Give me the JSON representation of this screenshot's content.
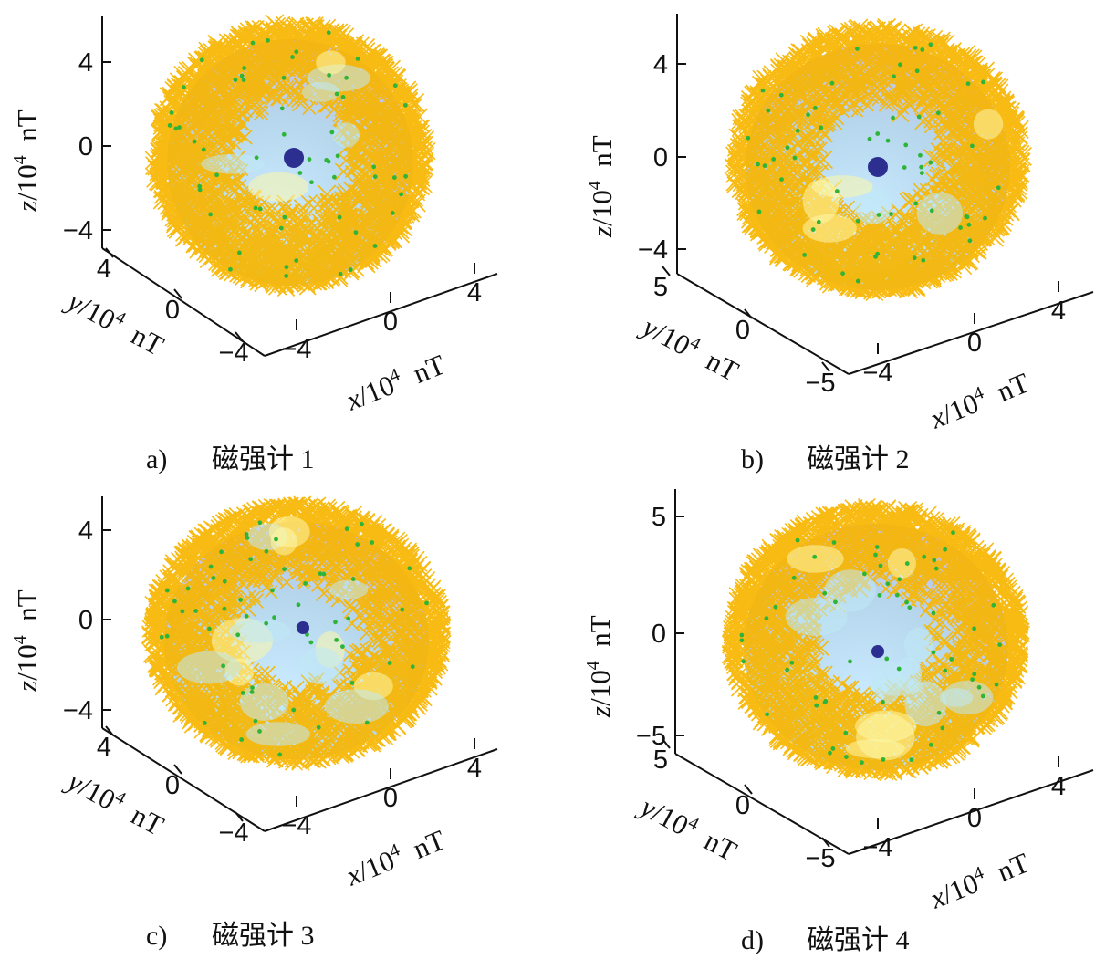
{
  "chart_data": [
    {
      "type": "scatter",
      "panel_letter": "a)",
      "caption": "磁强计 1",
      "xlabel": "x/10^4 nT",
      "ylabel": "y/10^4 nT",
      "zlabel": "z/10^4 nT",
      "z_ticks": [
        "4",
        "0",
        "-4"
      ],
      "y_ticks": [
        "4",
        "0",
        "-4"
      ],
      "x_ticks": [
        "-4",
        "0",
        "4"
      ],
      "series": [
        {
          "marker": "x",
          "color": "#f7b500",
          "values": "measured field points (dense, near-spherical shell radius ≈ 5)"
        },
        {
          "marker": "surface",
          "color": "#a9d8f2",
          "values": "fitted ellipsoid"
        },
        {
          "marker": "dot",
          "color": "#2c2f8f",
          "values": "centre point"
        }
      ]
    },
    {
      "type": "scatter",
      "panel_letter": "b)",
      "caption": "磁强计 2",
      "xlabel": "x/10^4 nT",
      "ylabel": "y/10^4 nT",
      "zlabel": "z/10^4 nT",
      "z_ticks": [
        "4",
        "0",
        "-4"
      ],
      "y_ticks": [
        "5",
        "0",
        "-5"
      ],
      "x_ticks": [
        "-4",
        "0",
        "4"
      ],
      "series": [
        {
          "marker": "x",
          "color": "#f7b500",
          "values": "measured field points"
        },
        {
          "marker": "surface",
          "color": "#a9d8f2",
          "values": "fitted ellipsoid"
        },
        {
          "marker": "dot",
          "color": "#2c2f8f",
          "values": "centre point"
        }
      ]
    },
    {
      "type": "scatter",
      "panel_letter": "c)",
      "caption": "磁强计 3",
      "xlabel": "x/10^4 nT",
      "ylabel": "y/10^4 nT",
      "zlabel": "z/10^4 nT",
      "z_ticks": [
        "4",
        "0",
        "-4"
      ],
      "y_ticks": [
        "4",
        "0",
        "-4"
      ],
      "x_ticks": [
        "-4",
        "0",
        "4"
      ],
      "series": [
        {
          "marker": "x",
          "color": "#f7b500",
          "values": "measured field points (banded)"
        },
        {
          "marker": "surface",
          "color": "#a9d8f2",
          "values": "fitted ellipsoid"
        },
        {
          "marker": "dot",
          "color": "#2c2f8f",
          "values": "centre point"
        }
      ]
    },
    {
      "type": "scatter",
      "panel_letter": "d)",
      "caption": "磁强计 4",
      "xlabel": "x/10^4 nT",
      "ylabel": "y/10^4 nT",
      "zlabel": "z/10^4 nT",
      "z_ticks": [
        "5",
        "0",
        "-5"
      ],
      "y_ticks": [
        "5",
        "0",
        "-5"
      ],
      "x_ticks": [
        "-4",
        "0",
        "4"
      ],
      "series": [
        {
          "marker": "x",
          "color": "#f7b500",
          "values": "measured field points (banded)"
        },
        {
          "marker": "surface",
          "color": "#a9d8f2",
          "values": "fitted ellipsoid"
        },
        {
          "marker": "dot",
          "color": "#2c2f8f",
          "values": "centre point"
        }
      ]
    }
  ]
}
